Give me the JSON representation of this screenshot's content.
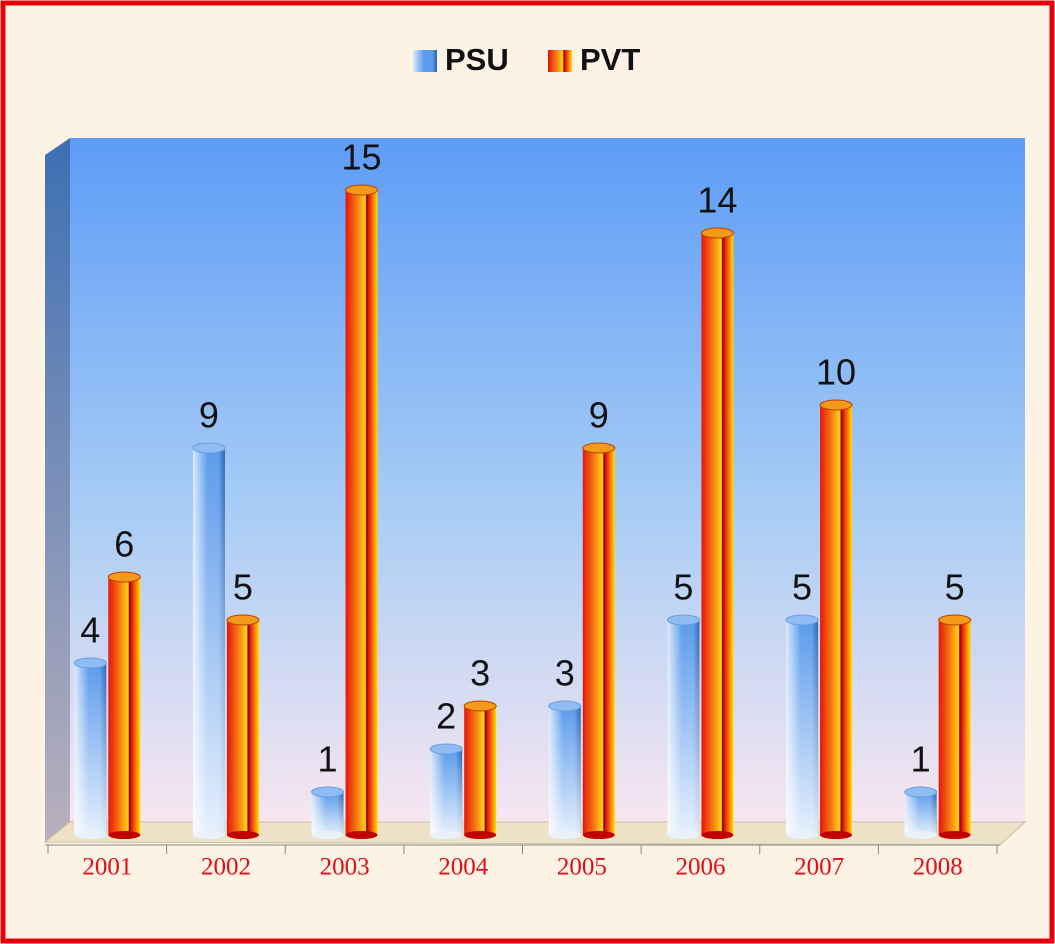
{
  "chart_data": {
    "type": "bar",
    "categories": [
      "2001",
      "2002",
      "2003",
      "2004",
      "2005",
      "2006",
      "2007",
      "2008"
    ],
    "series": [
      {
        "name": "PSU",
        "color": "#5b9bec",
        "values": [
          4,
          9,
          1,
          2,
          3,
          5,
          5,
          1
        ]
      },
      {
        "name": "PVT",
        "color": "#e8140c",
        "values": [
          6,
          5,
          15,
          3,
          9,
          14,
          10,
          5
        ]
      }
    ],
    "ylim": [
      0,
      16
    ],
    "legend": "top"
  }
}
